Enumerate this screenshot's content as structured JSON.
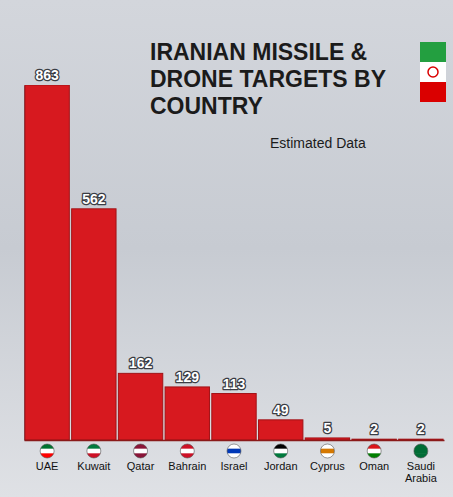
{
  "chart_data": {
    "type": "bar",
    "title": "IRANIAN MISSILE & DRONE TARGETS BY COUNTRY",
    "subtitle": "Estimated Data",
    "categories": [
      "UAE",
      "Kuwait",
      "Qatar",
      "Bahrain",
      "Israel",
      "Jordan",
      "Cyprus",
      "Oman",
      "Saudi Arabia"
    ],
    "values": [
      863,
      562,
      162,
      129,
      113,
      49,
      5,
      2,
      2
    ],
    "color": "#d7191f",
    "ylim": [
      0,
      863
    ],
    "data_labels": true,
    "tick_labels": "x",
    "grid": false
  }
}
